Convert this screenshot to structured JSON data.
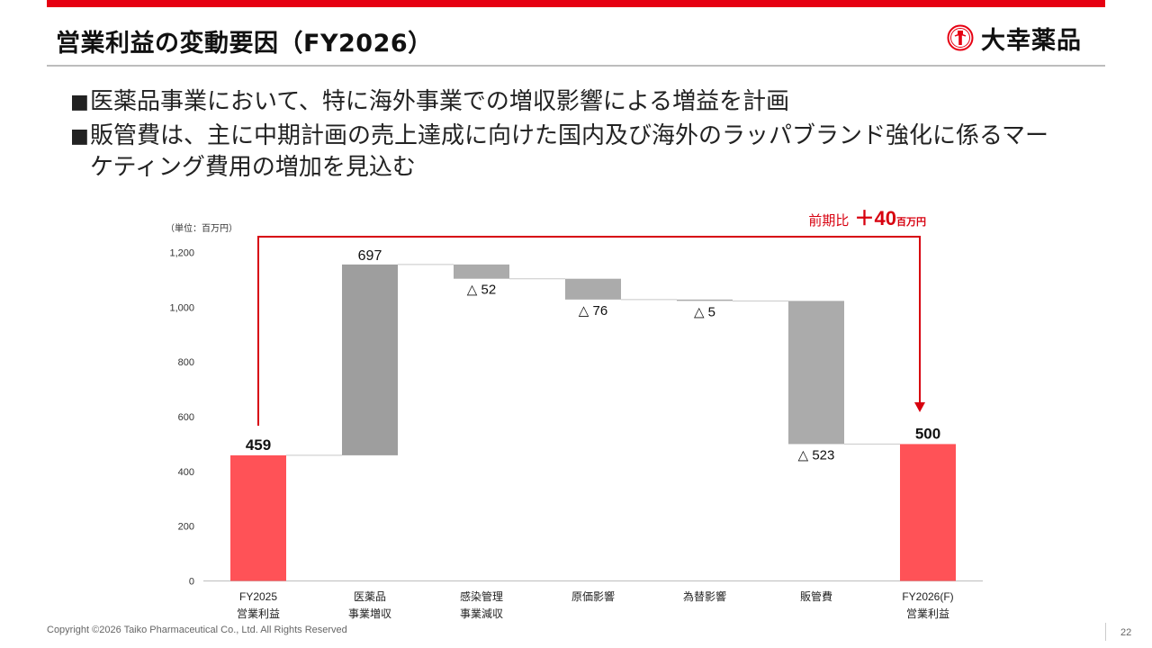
{
  "header": {
    "title": "営業利益の変動要因（FY2026）",
    "logo_text": "大幸薬品",
    "accent_color": "#e60012"
  },
  "bullets": [
    {
      "marker": "■",
      "text": "医薬品事業において、特に海外事業での増収影響による増益を計画"
    },
    {
      "marker": "■",
      "text": "販管費は、主に中期計画の売上達成に向けた国内及び海外のラッパブランド強化に係るマーケティング費用の増加を見込む"
    }
  ],
  "chart_data": {
    "type": "waterfall",
    "unit_label": "（単位：百万円）",
    "ylim": [
      0,
      1200
    ],
    "yticks": [
      "0",
      "200",
      "400",
      "600",
      "800",
      "1,000",
      "1,200"
    ],
    "ytick_values": [
      0,
      200,
      400,
      600,
      800,
      1000,
      1200
    ],
    "steps": [
      {
        "label_line1": "FY2025",
        "label_line2": "営業利益",
        "kind": "total",
        "value": 459,
        "value_label": "459",
        "color": "#ff5257"
      },
      {
        "label_line1": "医薬品",
        "label_line2": "事業増収",
        "kind": "delta",
        "value": 697,
        "value_label": "697",
        "color": "#9e9e9e"
      },
      {
        "label_line1": "感染管理",
        "label_line2": "事業減収",
        "kind": "delta",
        "value": -52,
        "value_label": "△ 52",
        "color": "#ababab"
      },
      {
        "label_line1": "原価影響",
        "label_line2": "",
        "kind": "delta",
        "value": -76,
        "value_label": "△ 76",
        "color": "#ababab"
      },
      {
        "label_line1": "為替影響",
        "label_line2": "",
        "kind": "delta",
        "value": -5,
        "value_label": "△ 5",
        "color": "#ababab"
      },
      {
        "label_line1": "販管費",
        "label_line2": "",
        "kind": "delta",
        "value": -523,
        "value_label": "△ 523",
        "color": "#ababab"
      },
      {
        "label_line1": "FY2026(F)",
        "label_line2": "営業利益",
        "kind": "total",
        "value": 500,
        "value_label": "500",
        "color": "#ff5257"
      }
    ],
    "comparison": {
      "label": "前期比",
      "value": "＋40",
      "unit": "百万円",
      "color": "#d7000f"
    }
  },
  "footer": {
    "copyright": "Copyright ©2026   Taiko Pharmaceutical Co., Ltd. All Rights Reserved",
    "page_number": "22"
  }
}
